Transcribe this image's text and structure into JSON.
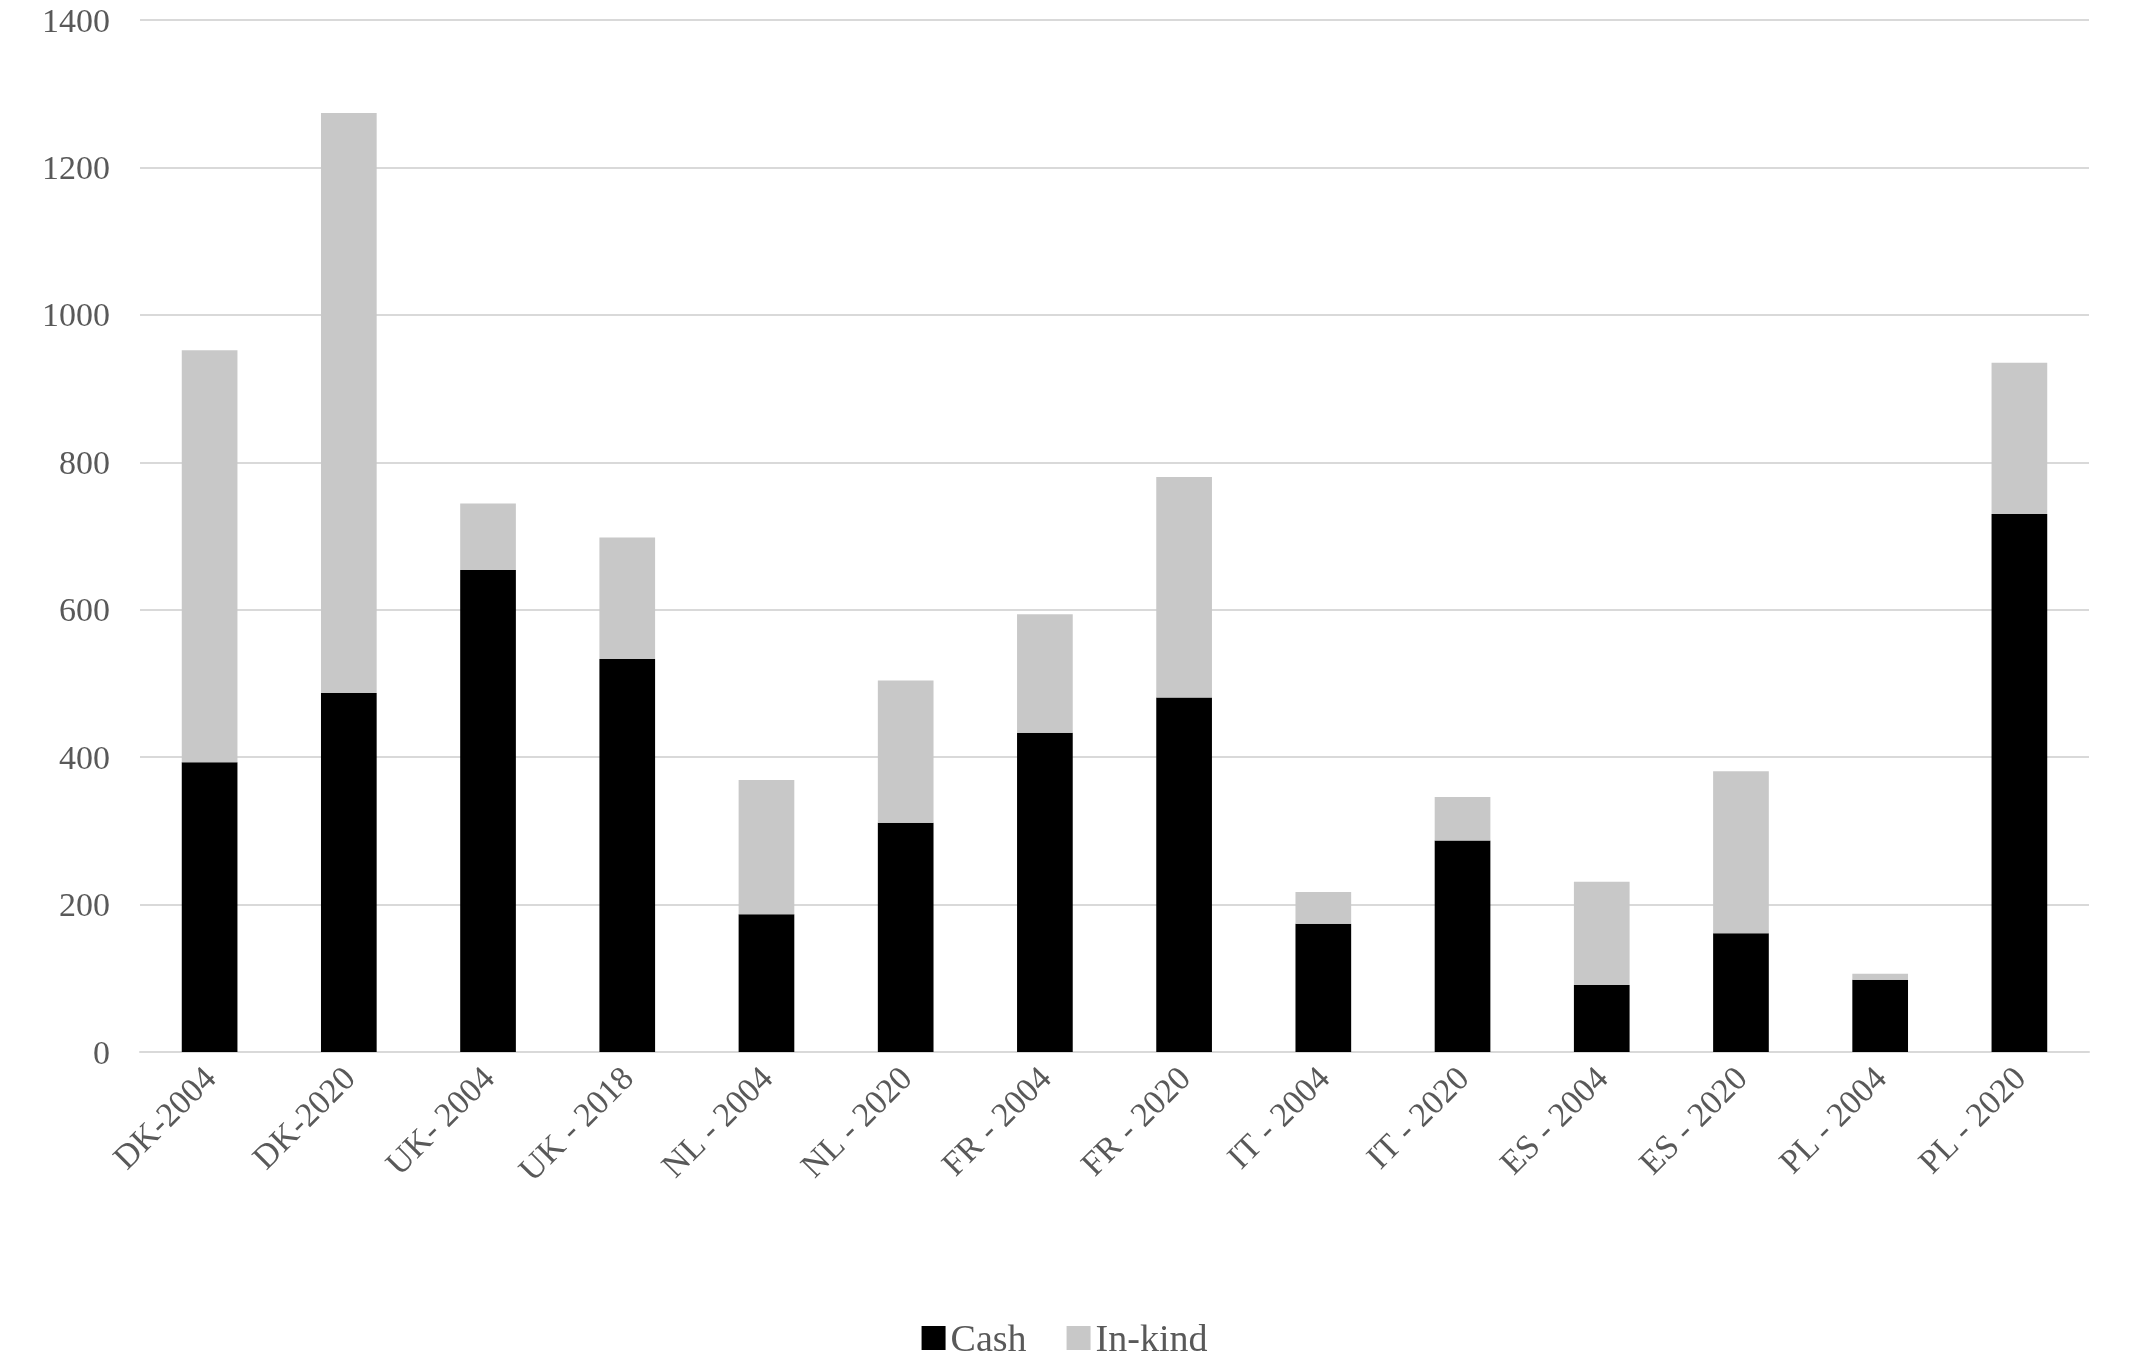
{
  "chart_data": {
    "type": "bar",
    "stacked": true,
    "categories": [
      "DK-2004",
      "DK-2020",
      "UK- 2004",
      "UK - 2018",
      "NL - 2004",
      "NL - 2020",
      "FR - 2004",
      "FR - 2020",
      "IT - 2004",
      "IT - 2020",
      "ES - 2004",
      "ES - 2020",
      "PL - 2004",
      "PL - 2020"
    ],
    "series": [
      {
        "name": "Cash",
        "color": "#000000",
        "values": [
          393,
          487,
          654,
          533,
          187,
          311,
          433,
          481,
          174,
          287,
          91,
          161,
          98,
          730
        ]
      },
      {
        "name": "In-kind",
        "color": "#c8c8c8",
        "values": [
          559,
          787,
          90,
          165,
          182,
          193,
          161,
          299,
          43,
          59,
          140,
          220,
          8,
          205
        ]
      }
    ],
    "ylim": [
      0,
      1400
    ],
    "yticks": [
      0,
      200,
      400,
      600,
      800,
      1000,
      1200,
      1400
    ],
    "grid": "y",
    "legend": "bottom"
  }
}
